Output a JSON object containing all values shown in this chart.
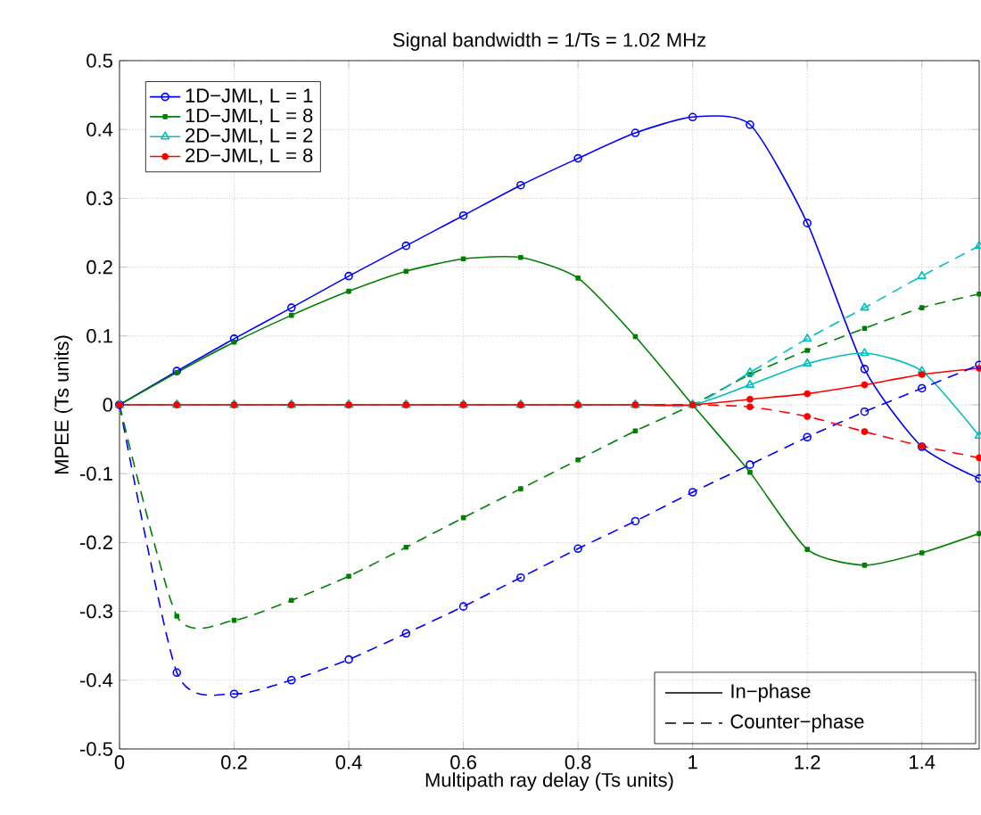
{
  "chart_data": {
    "type": "line",
    "title": "Signal bandwidth = 1/Ts = 1.02 MHz",
    "xlabel": "Multipath ray delay (Ts units)",
    "ylabel": "MPEE (Ts units)",
    "x": [
      0,
      0.1,
      0.2,
      0.3,
      0.4,
      0.5,
      0.6,
      0.7,
      0.8,
      0.9,
      1.0,
      1.1,
      1.2,
      1.3,
      1.4,
      1.5
    ],
    "xlim": [
      0,
      1.5
    ],
    "xticks": [
      0,
      0.2,
      0.4,
      0.6,
      0.8,
      1,
      1.2,
      1.4
    ],
    "ylim": [
      -0.5,
      0.5
    ],
    "yticks": [
      -0.5,
      -0.4,
      -0.3,
      -0.2,
      -0.1,
      0,
      0.1,
      0.2,
      0.3,
      0.4,
      0.5
    ],
    "grid": true,
    "legend": "top left",
    "annotations": [
      "In−phase",
      "Counter−phase"
    ],
    "series": [
      {
        "name": "1D−JML, L = 1",
        "color": "#0000ff",
        "marker": "circle",
        "line_style": "solid",
        "values": [
          0,
          0.049,
          0.096,
          0.141,
          0.187,
          0.231,
          0.275,
          0.319,
          0.358,
          0.395,
          0.418,
          0.407,
          0.264,
          0.052,
          -0.061,
          -0.107
        ]
      },
      {
        "name": "1D−JML, L = 8",
        "color": "#008000",
        "marker": "square",
        "line_style": "solid",
        "values": [
          0,
          0.047,
          0.091,
          0.13,
          0.165,
          0.194,
          0.212,
          0.214,
          0.184,
          0.099,
          0,
          -0.098,
          -0.21,
          -0.233,
          -0.215,
          -0.187
        ]
      },
      {
        "name": "2D−JML, L = 2",
        "color": "#00bfbf",
        "marker": "triangle",
        "line_style": "solid",
        "values": [
          0,
          0,
          0,
          0,
          0,
          0,
          0,
          0,
          0,
          0,
          0,
          0.029,
          0.06,
          0.075,
          0.049,
          -0.045
        ]
      },
      {
        "name": "2D−JML, L = 8",
        "color": "#ff0000",
        "marker": "star",
        "line_style": "solid",
        "values": [
          0,
          0,
          0,
          0,
          0,
          0,
          0,
          0,
          0,
          0,
          0,
          0.008,
          0.016,
          0.029,
          0.044,
          0.053
        ]
      },
      {
        "color": "#0000ff",
        "marker": "circle",
        "line_style": "dashed",
        "values": [
          0,
          -0.389,
          -0.42,
          -0.4,
          -0.37,
          -0.332,
          -0.293,
          -0.251,
          -0.209,
          -0.169,
          -0.127,
          -0.087,
          -0.047,
          -0.01,
          0.024,
          0.058
        ]
      },
      {
        "color": "#008000",
        "marker": "square",
        "line_style": "dashed",
        "values": [
          0,
          -0.307,
          -0.313,
          -0.284,
          -0.249,
          -0.207,
          -0.164,
          -0.122,
          -0.08,
          -0.038,
          0,
          0.044,
          0.079,
          0.111,
          0.141,
          0.161
        ]
      },
      {
        "color": "#00bfbf",
        "marker": "triangle",
        "line_style": "dashed",
        "values": [
          0,
          0,
          0,
          0,
          0,
          0,
          0,
          0,
          0,
          0,
          0,
          0.047,
          0.096,
          0.141,
          0.187,
          0.231
        ]
      },
      {
        "color": "#ff0000",
        "marker": "star",
        "line_style": "dashed",
        "values": [
          0,
          0,
          0,
          0,
          0,
          0,
          0,
          0,
          0,
          0,
          0,
          -0.003,
          -0.017,
          -0.039,
          -0.06,
          -0.077
        ]
      }
    ]
  }
}
